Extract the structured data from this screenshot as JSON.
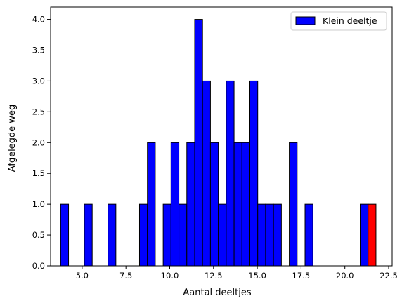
{
  "chart_data": {
    "type": "bar",
    "title": "",
    "xlabel": "Aantal deeltjes",
    "ylabel": "Afgelegde weg",
    "xlim": [
      3.2,
      22.7
    ],
    "ylim": [
      0,
      4.2
    ],
    "x_ticks": [
      5.0,
      7.5,
      10.0,
      12.5,
      15.0,
      17.5,
      20.0,
      22.5
    ],
    "x_tick_labels": [
      "5.0",
      "7.5",
      "10.0",
      "12.5",
      "15.0",
      "17.5",
      "20.0",
      "22.5"
    ],
    "y_ticks": [
      0.0,
      0.5,
      1.0,
      1.5,
      2.0,
      2.5,
      3.0,
      3.5,
      4.0
    ],
    "y_tick_labels": [
      "0.0",
      "0.5",
      "1.0",
      "1.5",
      "2.0",
      "2.5",
      "3.0",
      "3.5",
      "4.0"
    ],
    "bin_width": 0.45,
    "grid": false,
    "legend_position": "top-right",
    "legend": [
      {
        "label": "Klein deeltje",
        "color": "#0000ff"
      }
    ],
    "series": [
      {
        "name": "Klein deeltje",
        "color": "#0000ff",
        "bars": [
          {
            "x": 4.0,
            "y": 1
          },
          {
            "x": 5.35,
            "y": 1
          },
          {
            "x": 6.7,
            "y": 1
          },
          {
            "x": 8.5,
            "y": 1
          },
          {
            "x": 8.95,
            "y": 2
          },
          {
            "x": 9.85,
            "y": 1
          },
          {
            "x": 10.3,
            "y": 2
          },
          {
            "x": 10.75,
            "y": 1
          },
          {
            "x": 11.2,
            "y": 2
          },
          {
            "x": 11.65,
            "y": 4
          },
          {
            "x": 12.1,
            "y": 3
          },
          {
            "x": 12.55,
            "y": 2
          },
          {
            "x": 13.0,
            "y": 1
          },
          {
            "x": 13.45,
            "y": 3
          },
          {
            "x": 13.9,
            "y": 2
          },
          {
            "x": 14.35,
            "y": 2
          },
          {
            "x": 14.8,
            "y": 3
          },
          {
            "x": 15.25,
            "y": 1
          },
          {
            "x": 15.7,
            "y": 1
          },
          {
            "x": 16.15,
            "y": 1
          },
          {
            "x": 17.05,
            "y": 2
          },
          {
            "x": 17.95,
            "y": 1
          },
          {
            "x": 21.1,
            "y": 1
          }
        ]
      },
      {
        "color": "#ff0000",
        "bars": [
          {
            "x": 21.55,
            "y": 1
          }
        ]
      }
    ]
  }
}
